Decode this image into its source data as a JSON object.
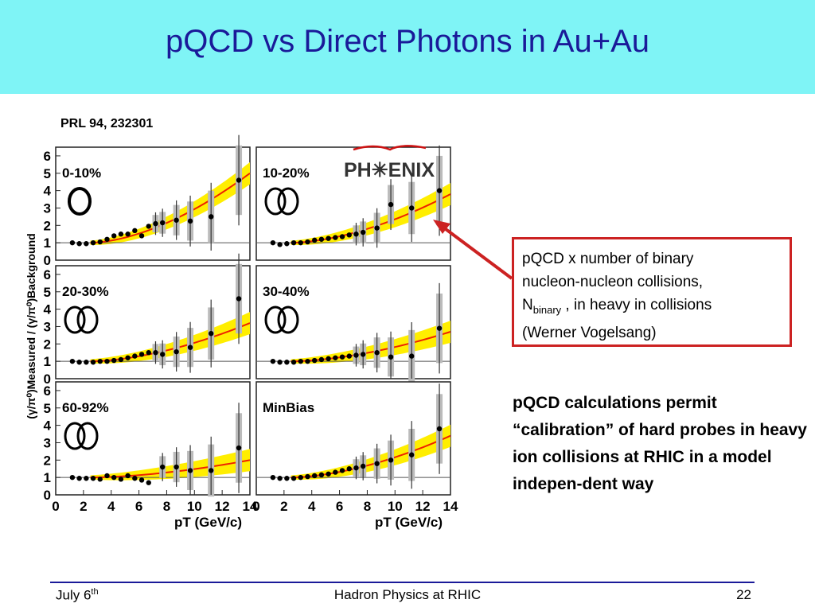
{
  "slide": {
    "title": "pQCD vs Direct Photons in Au+Au",
    "reference": "PRL 94, 232301",
    "logo_text": "PH✳ENIX",
    "note": {
      "line1": "pQCD x number of binary",
      "line2": "nucleon-nucleon collisions,",
      "n_main": "N",
      "n_sub": "binary",
      "line3_rest": " , in heavy in collisions",
      "line4": "(Werner Vogelsang)"
    },
    "description": "pQCD calculations permit “calibration” of hard probes in heavy ion collisions at RHIC in a model indepen-dent way",
    "footer": {
      "date_main": "July 6",
      "date_sup": "th",
      "center": "Hadron Physics at RHIC",
      "page": "22"
    }
  },
  "colors": {
    "title_bg": "#7ff4f6",
    "title_text": "#1a1a99",
    "band": "#ffee00",
    "curve": "#ee2200",
    "box_border": "#cc2222",
    "footer_line": "#1a1a99"
  },
  "chart_data": {
    "type": "scatter",
    "y_axis_label": "(γ/π⁰)Measured / (γ/π⁰)Background",
    "x_axis_label": "pT (GeV/c)",
    "x_ticks": [
      "0",
      "2",
      "4",
      "6",
      "8",
      "10",
      "12",
      "14"
    ],
    "y_ticks": [
      "0",
      "1",
      "2",
      "3",
      "4",
      "5",
      "6"
    ],
    "xlim": [
      0,
      14
    ],
    "ylim": [
      0,
      6.5
    ],
    "reference_line": 1,
    "panels": [
      {
        "label": "0-10%",
        "col": 0,
        "row": 0,
        "rings": 1,
        "points": [
          [
            1.2,
            1.0
          ],
          [
            1.7,
            0.95
          ],
          [
            2.2,
            0.95
          ],
          [
            2.7,
            1.0
          ],
          [
            3.2,
            1.05
          ],
          [
            3.7,
            1.2
          ],
          [
            4.2,
            1.4
          ],
          [
            4.7,
            1.5
          ],
          [
            5.2,
            1.5
          ],
          [
            5.7,
            1.7
          ],
          [
            6.2,
            1.4
          ],
          [
            6.7,
            1.95
          ],
          [
            7.2,
            2.1
          ],
          [
            7.7,
            2.15
          ],
          [
            8.7,
            2.3
          ],
          [
            9.7,
            2.25
          ],
          [
            11.2,
            2.5
          ],
          [
            13.2,
            4.6
          ]
        ],
        "curve_end": 5.0
      },
      {
        "label": "10-20%",
        "col": 1,
        "row": 0,
        "rings": 2,
        "points": [
          [
            1.2,
            1.0
          ],
          [
            1.7,
            0.9
          ],
          [
            2.2,
            0.95
          ],
          [
            2.7,
            1.0
          ],
          [
            3.2,
            1.0
          ],
          [
            3.7,
            1.05
          ],
          [
            4.2,
            1.15
          ],
          [
            4.7,
            1.2
          ],
          [
            5.2,
            1.25
          ],
          [
            5.7,
            1.3
          ],
          [
            6.2,
            1.35
          ],
          [
            6.7,
            1.45
          ],
          [
            7.2,
            1.5
          ],
          [
            7.7,
            1.6
          ],
          [
            8.7,
            1.85
          ],
          [
            9.7,
            3.2
          ],
          [
            11.2,
            3.0
          ],
          [
            13.2,
            4.0
          ]
        ],
        "curve_end": 3.8
      },
      {
        "label": "20-30%",
        "col": 0,
        "row": 1,
        "rings": 2,
        "points": [
          [
            1.2,
            1.0
          ],
          [
            1.7,
            0.95
          ],
          [
            2.2,
            0.95
          ],
          [
            2.7,
            0.95
          ],
          [
            3.2,
            1.0
          ],
          [
            3.7,
            1.0
          ],
          [
            4.2,
            1.05
          ],
          [
            4.7,
            1.1
          ],
          [
            5.2,
            1.2
          ],
          [
            5.7,
            1.3
          ],
          [
            6.2,
            1.4
          ],
          [
            6.7,
            1.5
          ],
          [
            7.2,
            1.5
          ],
          [
            7.7,
            1.4
          ],
          [
            8.7,
            1.55
          ],
          [
            9.7,
            1.8
          ],
          [
            11.2,
            2.6
          ],
          [
            13.2,
            4.6
          ]
        ],
        "curve_end": 3.2
      },
      {
        "label": "30-40%",
        "col": 1,
        "row": 1,
        "rings": 2,
        "points": [
          [
            1.2,
            1.0
          ],
          [
            1.7,
            0.95
          ],
          [
            2.2,
            0.95
          ],
          [
            2.7,
            0.95
          ],
          [
            3.2,
            1.0
          ],
          [
            3.7,
            1.0
          ],
          [
            4.2,
            1.05
          ],
          [
            4.7,
            1.1
          ],
          [
            5.2,
            1.15
          ],
          [
            5.7,
            1.2
          ],
          [
            6.2,
            1.25
          ],
          [
            6.7,
            1.3
          ],
          [
            7.2,
            1.35
          ],
          [
            7.7,
            1.4
          ],
          [
            8.7,
            1.5
          ],
          [
            9.7,
            1.25
          ],
          [
            11.2,
            1.3
          ],
          [
            13.2,
            2.9
          ]
        ],
        "curve_end": 2.7
      },
      {
        "label": "60-92%",
        "col": 0,
        "row": 2,
        "rings": 2,
        "points": [
          [
            1.2,
            1.0
          ],
          [
            1.7,
            0.95
          ],
          [
            2.2,
            0.95
          ],
          [
            2.7,
            0.95
          ],
          [
            3.2,
            0.9
          ],
          [
            3.7,
            1.1
          ],
          [
            4.2,
            1.0
          ],
          [
            4.7,
            0.9
          ],
          [
            5.2,
            1.1
          ],
          [
            5.7,
            0.95
          ],
          [
            6.2,
            0.85
          ],
          [
            6.7,
            0.7
          ],
          [
            7.7,
            1.6
          ],
          [
            8.7,
            1.6
          ],
          [
            9.7,
            1.4
          ],
          [
            11.2,
            1.4
          ],
          [
            13.2,
            2.7
          ]
        ],
        "curve_end": 2.0
      },
      {
        "label": "MinBias",
        "col": 1,
        "row": 2,
        "rings": 0,
        "points": [
          [
            1.2,
            1.0
          ],
          [
            1.7,
            0.95
          ],
          [
            2.2,
            0.95
          ],
          [
            2.7,
            0.95
          ],
          [
            3.2,
            1.0
          ],
          [
            3.7,
            1.05
          ],
          [
            4.2,
            1.1
          ],
          [
            4.7,
            1.15
          ],
          [
            5.2,
            1.2
          ],
          [
            5.7,
            1.3
          ],
          [
            6.2,
            1.4
          ],
          [
            6.7,
            1.5
          ],
          [
            7.2,
            1.55
          ],
          [
            7.7,
            1.65
          ],
          [
            8.7,
            1.8
          ],
          [
            9.7,
            2.0
          ],
          [
            11.2,
            2.3
          ],
          [
            13.2,
            3.8
          ]
        ],
        "curve_end": 3.4
      }
    ]
  }
}
